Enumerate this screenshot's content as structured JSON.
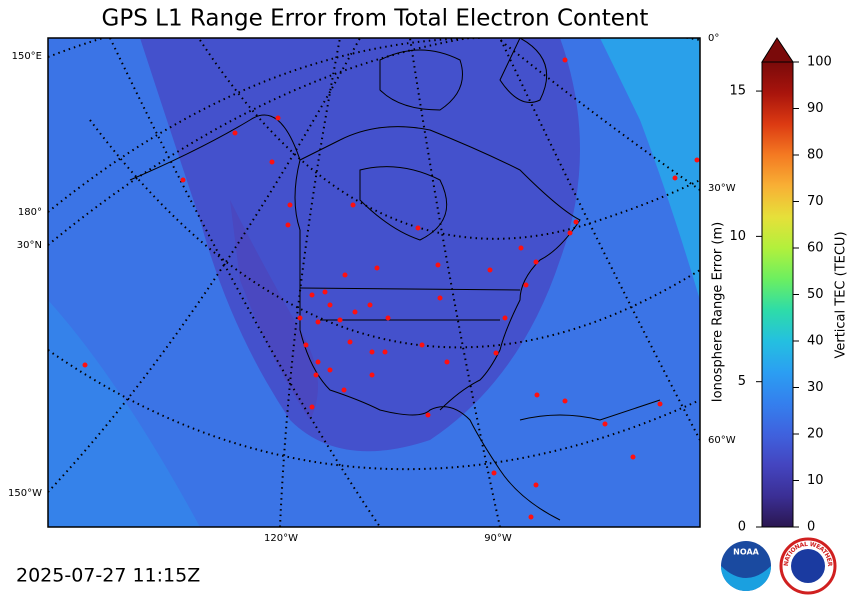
{
  "title": "GPS L1 Range Error from Total Electron Content",
  "map": {
    "graticule_labels": [
      "150°E",
      "180°",
      "30°N",
      "150°W",
      "0°",
      "30°W",
      "60°W",
      "120°W",
      "90°W"
    ]
  },
  "colorbar": {
    "colors": [
      "#2a1650",
      "#3b2f95",
      "#4445c0",
      "#3f62de",
      "#3480ee",
      "#2b9ff2",
      "#24c0e0",
      "#2edca8",
      "#6cef60",
      "#b2f03c",
      "#e6e03a",
      "#f8b035",
      "#f47a22",
      "#dc3a12",
      "#a8140c",
      "#7a0a0a"
    ],
    "range_error": {
      "label": "Ionosphere Range Error (m)",
      "lim": [
        0,
        16
      ],
      "ticks": [
        0,
        5,
        10,
        15
      ]
    },
    "tec": {
      "label": "Vertical TEC (TECU)",
      "lim": [
        0,
        100
      ],
      "ticks": [
        0,
        10,
        20,
        30,
        40,
        50,
        60,
        70,
        80,
        90,
        100
      ]
    }
  },
  "timestamp": "2025-07-27 11:15Z",
  "logos": {
    "noaa": "NOAA",
    "nws": "NATIONAL WEATHER SERVICE"
  }
}
